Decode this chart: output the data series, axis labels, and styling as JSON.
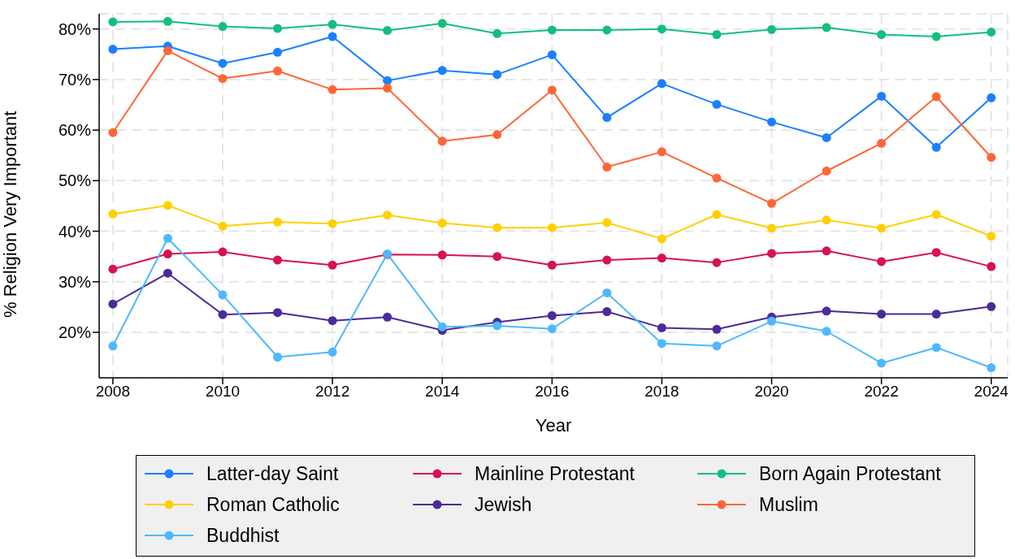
{
  "chart_data": {
    "type": "line",
    "xlabel": "Year",
    "ylabel": "% Religion Very Important",
    "x": [
      2008,
      2009,
      2010,
      2011,
      2012,
      2013,
      2014,
      2015,
      2016,
      2017,
      2018,
      2019,
      2020,
      2021,
      2022,
      2023,
      2024
    ],
    "series": [
      {
        "name": "Latter-day Saint",
        "color": "#1a80ff",
        "values": [
          76,
          76.6,
          73.2,
          75.4,
          78.5,
          69.8,
          71.8,
          71,
          74.9,
          62.5,
          69.2,
          65.1,
          61.6,
          58.5,
          66.7,
          56.6,
          66.4
        ]
      },
      {
        "name": "Mainline Protestant",
        "color": "#d6134f",
        "values": [
          32.5,
          35.5,
          35.9,
          34.3,
          33.3,
          35.4,
          35.3,
          35,
          33.3,
          34.3,
          34.7,
          33.8,
          35.6,
          36.1,
          34,
          35.8,
          33
        ]
      },
      {
        "name": "Born Again Protestant",
        "color": "#13bf7d",
        "values": [
          81.4,
          81.5,
          80.5,
          80.1,
          80.9,
          79.7,
          81.1,
          79.1,
          79.8,
          79.8,
          80,
          78.9,
          79.9,
          80.3,
          78.9,
          78.5,
          79.4
        ]
      },
      {
        "name": "Roman Catholic",
        "color": "#ffd000",
        "values": [
          43.4,
          45.1,
          41,
          41.8,
          41.5,
          43.2,
          41.6,
          40.7,
          40.7,
          41.7,
          38.5,
          43.3,
          40.6,
          42.2,
          40.6,
          43.3,
          39
        ]
      },
      {
        "name": "Jewish",
        "color": "#4b2a9b",
        "values": [
          25.6,
          31.7,
          23.5,
          23.9,
          22.3,
          23,
          20.4,
          22,
          23.3,
          24.1,
          20.9,
          20.6,
          23,
          24.2,
          23.6,
          23.6,
          25.1
        ]
      },
      {
        "name": "Muslim",
        "color": "#fe6637",
        "values": [
          59.5,
          75.7,
          70.2,
          71.7,
          68,
          68.3,
          57.8,
          59.1,
          67.9,
          52.7,
          55.7,
          50.5,
          45.5,
          51.9,
          57.4,
          66.6,
          54.6
        ]
      },
      {
        "name": "Buddhist",
        "color": "#4db8ff",
        "values": [
          17.3,
          38.6,
          27.4,
          15.1,
          16.1,
          35.5,
          21.1,
          21.3,
          20.7,
          27.8,
          17.8,
          17.3,
          22.2,
          20.2,
          13.9,
          17,
          13
        ]
      }
    ],
    "xlim": [
      2007.75,
      2024.3
    ],
    "xticks": [
      2008,
      2010,
      2012,
      2014,
      2016,
      2018,
      2020,
      2022,
      2024
    ],
    "ylim": [
      11,
      83
    ],
    "yticks": [
      {
        "value": 20,
        "label": "20%"
      },
      {
        "value": 30,
        "label": "30%"
      },
      {
        "value": 40,
        "label": "40%"
      },
      {
        "value": 50,
        "label": "50%"
      },
      {
        "value": 60,
        "label": "60%"
      },
      {
        "value": 70,
        "label": "70%"
      },
      {
        "value": 80,
        "label": "80%"
      }
    ],
    "grid": true,
    "legend": "bottom",
    "marker": "circle",
    "line_style": "solid"
  }
}
